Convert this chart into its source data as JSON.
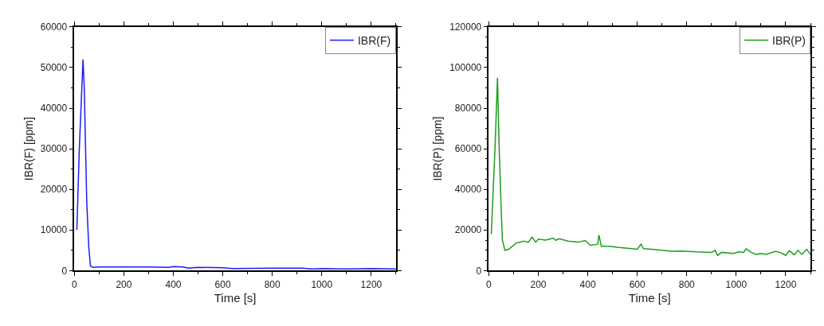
{
  "chart_data": [
    {
      "type": "line",
      "xlabel": "Time [s]",
      "ylabel": "IBR(F) [ppm]",
      "xlim": [
        0,
        1300
      ],
      "ylim": [
        0,
        60000
      ],
      "xticks": [
        0,
        200,
        400,
        600,
        800,
        1000,
        1200
      ],
      "yticks": [
        0,
        10000,
        20000,
        30000,
        40000,
        50000,
        60000
      ],
      "legend": "top right",
      "marker": "none",
      "line_style": "solid",
      "series": [
        {
          "name": "IBR(F)",
          "color": "#1a1aff",
          "x": [
            10,
            20,
            35,
            40,
            50,
            58,
            65,
            75,
            100,
            200,
            300,
            380,
            400,
            440,
            460,
            500,
            600,
            640,
            800,
            920,
            960,
            1000,
            1100,
            1200,
            1300
          ],
          "values": [
            10000,
            30000,
            52000,
            45000,
            17000,
            6000,
            1200,
            800,
            900,
            900,
            900,
            800,
            1000,
            900,
            600,
            800,
            700,
            500,
            600,
            600,
            400,
            500,
            400,
            500,
            400
          ]
        }
      ]
    },
    {
      "type": "line",
      "xlabel": "Time [s]",
      "ylabel": "IBR(P) [ppm]",
      "xlim": [
        0,
        1300
      ],
      "ylim": [
        0,
        120000
      ],
      "xticks": [
        0,
        200,
        400,
        600,
        800,
        1000,
        1200
      ],
      "yticks": [
        0,
        20000,
        40000,
        60000,
        80000,
        100000,
        120000
      ],
      "legend": "top right",
      "marker": "none",
      "line_style": "solid",
      "series": [
        {
          "name": "IBR(P)",
          "color": "#1a9e1a",
          "x": [
            10,
            25,
            35,
            42,
            50,
            55,
            65,
            80,
            110,
            140,
            160,
            175,
            190,
            200,
            230,
            260,
            270,
            285,
            320,
            360,
            390,
            410,
            440,
            445,
            455,
            490,
            520,
            560,
            600,
            615,
            625,
            660,
            700,
            740,
            780,
            840,
            900,
            915,
            925,
            940,
            990,
            1010,
            1030,
            1040,
            1060,
            1080,
            1100,
            1120,
            1160,
            1180,
            1200,
            1215,
            1235,
            1250,
            1265,
            1285,
            1300
          ],
          "values": [
            18000,
            60000,
            95000,
            60000,
            30000,
            15000,
            10000,
            10500,
            13500,
            14500,
            14000,
            16500,
            14000,
            15500,
            15000,
            16000,
            15000,
            15700,
            14500,
            14000,
            14800,
            12500,
            13000,
            17500,
            12000,
            12000,
            11500,
            11000,
            10500,
            13000,
            10800,
            10500,
            10000,
            9500,
            9600,
            9200,
            9000,
            10000,
            7500,
            9000,
            8500,
            9200,
            9000,
            10800,
            9000,
            8000,
            8500,
            8000,
            9500,
            8800,
            7500,
            9800,
            7800,
            10000,
            8000,
            10500,
            8000
          ]
        }
      ]
    }
  ]
}
